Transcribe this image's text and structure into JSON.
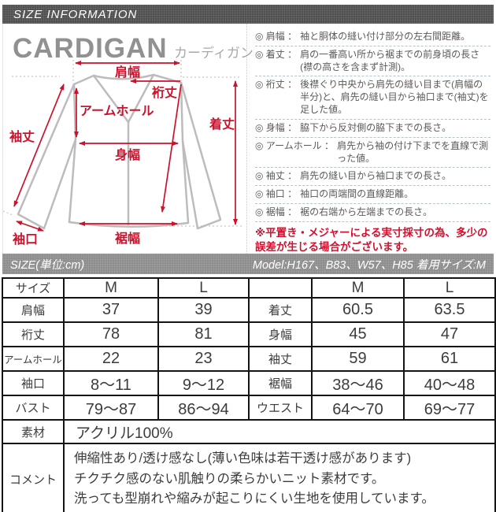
{
  "header": {
    "title": "SIZE INFORMATION"
  },
  "product": {
    "name_en": "CARDIGAN",
    "name_ja": "カーディガン"
  },
  "diagram": {
    "labels": {
      "shoulder": "肩幅",
      "yuki": "裄丈",
      "armhole": "アームホール",
      "length": "着丈",
      "width": "身幅",
      "sleeve": "袖丈",
      "cuff": "袖口",
      "hem": "裾幅"
    },
    "colors": {
      "garment": "#bcbcbc",
      "accent": "#ce112b"
    }
  },
  "defs_bullet": "◎",
  "defs_colon": "：",
  "definitions": [
    {
      "term": "肩幅",
      "desc": "袖と胴体の縫い付け部分の左右間距離。"
    },
    {
      "term": "着丈",
      "desc": "肩の一番高い所から裾までの前身頃の長さ(襟の高さを含まず計測)。"
    },
    {
      "term": "裄丈",
      "desc": "後襟ぐり中央から肩先の縫い目まで(肩幅の半分)と、肩先の縫い目から袖口まで(袖丈)を足した値。"
    },
    {
      "term": "身幅",
      "desc": "脇下から反対側の脇下までの長さ。"
    },
    {
      "term": "アームホール",
      "desc": "肩先から袖の付け下までを直線で測った値。"
    },
    {
      "term": "袖丈",
      "desc": "肩先の縫い目から袖口までの長さ。"
    },
    {
      "term": "袖口",
      "desc": "袖口の両端間の直線距離。"
    },
    {
      "term": "裾幅",
      "desc": "裾の右端から左端までの長さ。"
    }
  ],
  "note": "※平置き・メジャーによる実寸採寸の為、多少の誤差が生じる場合がございます。",
  "size_bar": {
    "left": "SIZE(単位:cm)",
    "right": "Model:H167、B83、W57、H85 着用サイズ:M"
  },
  "size_table": {
    "header": [
      "サイズ",
      "M",
      "L",
      "",
      "M",
      "L"
    ],
    "rows": [
      [
        "肩幅",
        "37",
        "39",
        "着丈",
        "60.5",
        "63.5"
      ],
      [
        "裄丈",
        "78",
        "81",
        "身幅",
        "45",
        "47"
      ],
      [
        "アームホール",
        "22",
        "23",
        "袖丈",
        "59",
        "61"
      ],
      [
        "袖口",
        "8〜11",
        "9〜12",
        "裾幅",
        "38〜46",
        "40〜48"
      ],
      [
        "バスト",
        "79〜87",
        "86〜94",
        "ウエスト",
        "64〜70",
        "69〜77"
      ]
    ],
    "material_label": "素材",
    "material_value": "アクリル100%",
    "comment_label": "コメント",
    "comment_lines": [
      "伸縮性あり/透け感なし(薄い色味は若干透け感があります)",
      "チクチク感のない肌触りの柔らかいニット素材です。",
      "洗っても型崩れや縮みが起こりにくい生地を使用しています。"
    ]
  }
}
